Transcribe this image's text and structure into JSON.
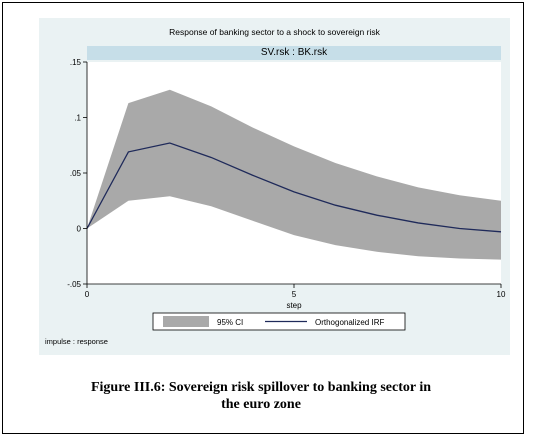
{
  "chart_data": {
    "type": "area",
    "title": "Response of banking sector to a shock to sovereign risk",
    "panel_label": "SV.rsk : BK.rsk",
    "xlabel": "step",
    "ylabel": "",
    "xlim": [
      0,
      10
    ],
    "ylim": [
      -0.05,
      0.15
    ],
    "x_ticks": [
      0,
      5,
      10
    ],
    "x_tick_labels": [
      "0",
      "5",
      "10"
    ],
    "y_ticks": [
      -0.05,
      0,
      0.05,
      0.1,
      0.15
    ],
    "y_tick_labels": [
      "-.05",
      "0",
      ".05",
      ".1",
      ".15"
    ],
    "x": [
      0,
      1,
      2,
      3,
      4,
      5,
      6,
      7,
      8,
      9,
      10
    ],
    "series": [
      {
        "name": "Orthogonalized IRF",
        "kind": "line",
        "values": [
          0.0,
          0.069,
          0.077,
          0.064,
          0.048,
          0.033,
          0.021,
          0.012,
          0.005,
          0.0,
          -0.003
        ],
        "color": "#1f2a5a"
      },
      {
        "name": "95% CI",
        "kind": "band",
        "lower": [
          0.0,
          0.025,
          0.029,
          0.02,
          0.007,
          -0.006,
          -0.015,
          -0.021,
          -0.025,
          -0.027,
          -0.028
        ],
        "upper": [
          0.0,
          0.113,
          0.125,
          0.11,
          0.091,
          0.074,
          0.059,
          0.047,
          0.037,
          0.03,
          0.025
        ],
        "color": "#a9a9a9"
      }
    ],
    "legend": {
      "placement": "bottom",
      "entries": [
        "95% CI",
        "Orthogonalized IRF"
      ]
    },
    "note": "impulse : response",
    "grid": false
  },
  "caption": {
    "line1": "Figure III.6: Sovereign risk spillover to banking sector in",
    "line2": "the euro zone"
  },
  "colors": {
    "panel_background": "#eaf2f3",
    "strip_background": "#c6dee8",
    "plot_background": "#ffffff",
    "band_fill": "#a9a9a9",
    "line": "#1f2a5a"
  }
}
